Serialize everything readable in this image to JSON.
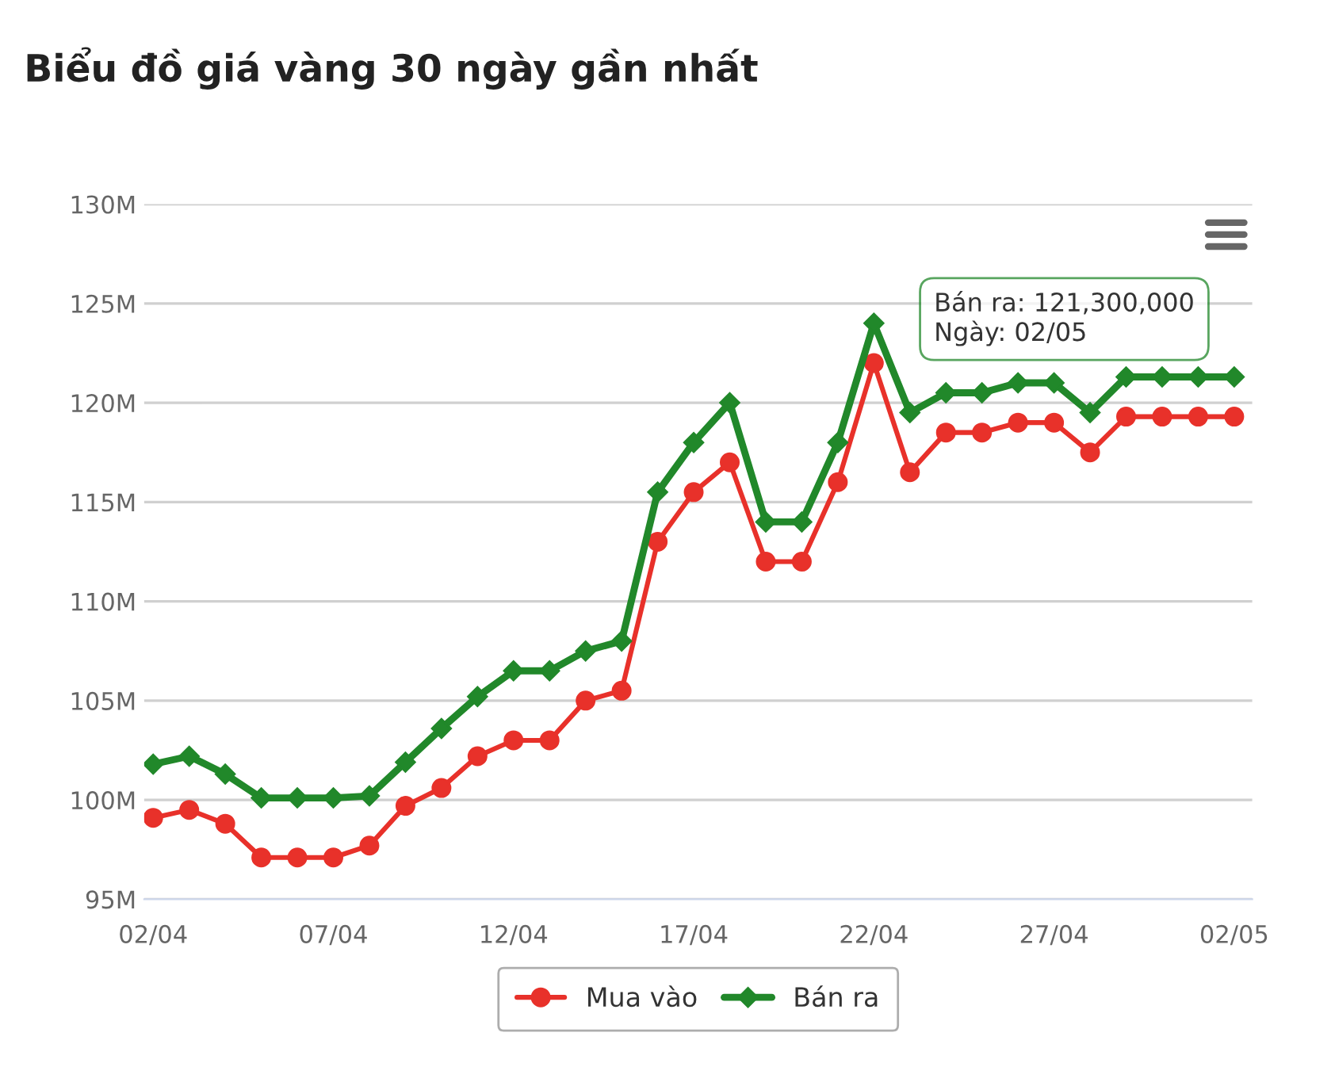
{
  "chart_data": {
    "type": "line",
    "title": "Biểu đồ giá vàng 30 ngày gần nhất",
    "categories": [
      "02/04",
      null,
      null,
      null,
      null,
      "07/04",
      null,
      null,
      null,
      null,
      "12/04",
      null,
      null,
      null,
      null,
      "17/04",
      null,
      null,
      null,
      null,
      "22/04",
      null,
      null,
      null,
      null,
      "27/04",
      null,
      null,
      null,
      null,
      "02/05"
    ],
    "series": [
      {
        "name": "Mua vào",
        "color": "#e8312a",
        "marker": "circle",
        "values": [
          99.1,
          99.5,
          98.8,
          97.1,
          97.1,
          97.1,
          97.7,
          99.7,
          100.6,
          102.2,
          103,
          103,
          105,
          105.5,
          113,
          115.5,
          117,
          112,
          112,
          116,
          122,
          116.5,
          118.5,
          118.5,
          119,
          119,
          117.5,
          119.3,
          119.3,
          119.3,
          119.3
        ]
      },
      {
        "name": "Bán ra",
        "color": "#21882a",
        "marker": "diamond",
        "values": [
          101.8,
          102.2,
          101.3,
          100.1,
          100.1,
          100.1,
          100.2,
          101.9,
          103.6,
          105.2,
          106.5,
          106.5,
          107.5,
          108,
          115.5,
          118,
          120,
          114,
          114,
          118,
          124,
          119.5,
          120.5,
          120.5,
          121,
          121,
          119.5,
          121.3,
          121.3,
          121.3,
          121.3
        ]
      }
    ],
    "ylim": [
      95,
      130
    ],
    "yticks": [
      {
        "value": 95,
        "label": "95M"
      },
      {
        "value": 100,
        "label": "100M"
      },
      {
        "value": 105,
        "label": "105M"
      },
      {
        "value": 110,
        "label": "110M"
      },
      {
        "value": 115,
        "label": "115M"
      },
      {
        "value": 120,
        "label": "120M"
      },
      {
        "value": 125,
        "label": "125M"
      },
      {
        "value": 130,
        "label": "130M"
      }
    ],
    "grid": "y",
    "legend": "bottom",
    "line_style": "solid",
    "annotations": [
      {
        "text": "Bán ra: 121,300,000\nNgày: 02/05",
        "x": "02/05",
        "y": 121.3
      }
    ]
  }
}
